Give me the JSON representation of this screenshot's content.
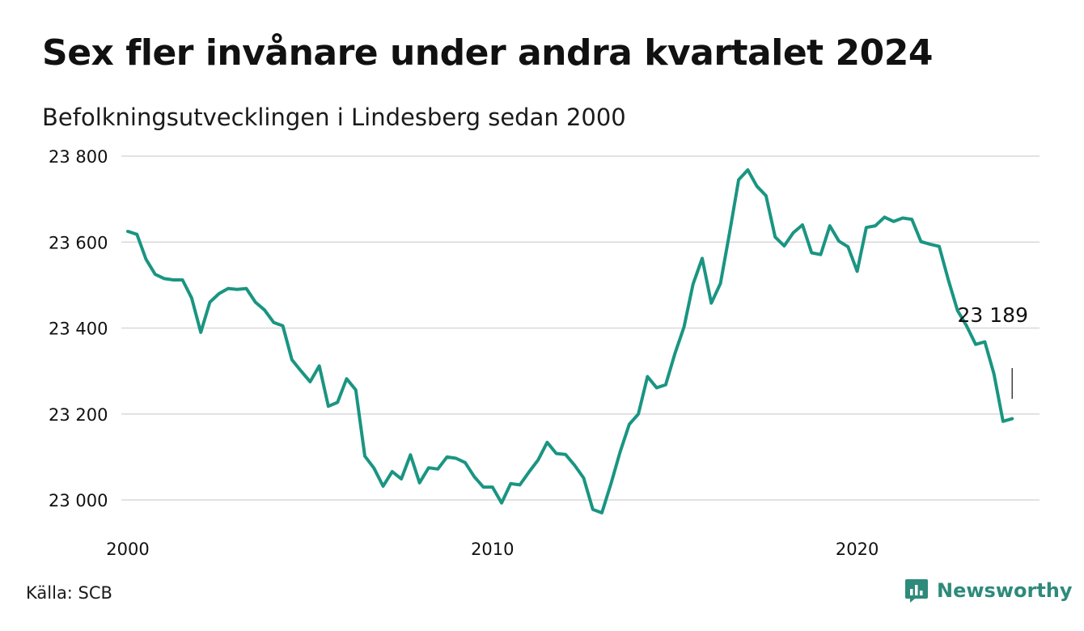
{
  "title": "Sex fler invånare under andra kvartalet 2024",
  "subtitle": "Befolkningsutvecklingen i Lindesberg sedan 2000",
  "source": "Källa: SCB",
  "brand": {
    "name": "Newsworthy",
    "icon": "bar-chart-logo-icon"
  },
  "colors": {
    "line": "#1a9582",
    "grid": "#d9d9d9",
    "brand": "#2e8a7a"
  },
  "chart_data": {
    "type": "line",
    "title": "Sex fler invånare under andra kvartalet 2024",
    "subtitle": "Befolkningsutvecklingen i Lindesberg sedan 2000",
    "xlabel": "",
    "ylabel": "",
    "xlim": [
      2000,
      2025
    ],
    "ylim": [
      22960,
      23800
    ],
    "y_ticks": [
      23000,
      23200,
      23400,
      23600,
      23800
    ],
    "y_tick_labels": [
      "23 000",
      "23 200",
      "23 400",
      "23 600",
      "23 800"
    ],
    "x_ticks": [
      2000,
      2010,
      2020
    ],
    "x_tick_labels": [
      "2000",
      "2010",
      "2020"
    ],
    "grid": true,
    "annotation": {
      "label": "23 189",
      "value": 23189
    },
    "series": [
      {
        "x": [
          2000.0,
          2000.25,
          2000.5,
          2000.75,
          2001.0,
          2001.25,
          2001.5,
          2001.75,
          2002.0,
          2002.25,
          2002.5,
          2002.75,
          2003.0,
          2003.25,
          2003.5,
          2003.75,
          2004.0,
          2004.25,
          2004.5,
          2004.75,
          2005.0,
          2005.25,
          2005.5,
          2005.75,
          2006.0,
          2006.25,
          2006.5,
          2006.75,
          2007.0,
          2007.25,
          2007.5,
          2007.75,
          2008.0,
          2008.25,
          2008.5,
          2008.75,
          2009.0,
          2009.25,
          2009.5,
          2009.75,
          2010.0,
          2010.25,
          2010.5,
          2010.75,
          2011.0,
          2011.25,
          2011.5,
          2011.75,
          2012.0,
          2012.25,
          2012.5,
          2012.75,
          2013.0,
          2013.25,
          2013.5,
          2013.75,
          2014.0,
          2014.25,
          2014.5,
          2014.75,
          2015.0,
          2015.25,
          2015.5,
          2015.75,
          2016.0,
          2016.25,
          2016.5,
          2016.75,
          2017.0,
          2017.25,
          2017.5,
          2017.75,
          2018.0,
          2018.25,
          2018.5,
          2018.75,
          2019.0,
          2019.25,
          2019.5,
          2019.75,
          2020.0,
          2020.25,
          2020.5,
          2020.75,
          2021.0,
          2021.25,
          2021.5,
          2021.75,
          2022.0,
          2022.25,
          2022.5,
          2022.75,
          2023.0,
          2023.25,
          2023.5,
          2023.75,
          2024.0,
          2024.25
        ],
        "values": [
          23625,
          23618,
          23560,
          23525,
          23515,
          23512,
          23512,
          23470,
          23390,
          23460,
          23480,
          23492,
          23490,
          23492,
          23460,
          23442,
          23413,
          23405,
          23326,
          23300,
          23275,
          23312,
          23218,
          23227,
          23282,
          23256,
          23102,
          23074,
          23032,
          23066,
          23049,
          23105,
          23040,
          23075,
          23072,
          23100,
          23097,
          23087,
          23054,
          23030,
          23030,
          22993,
          23038,
          23035,
          23065,
          23093,
          23134,
          23108,
          23106,
          23081,
          23051,
          22978,
          22970,
          23038,
          23112,
          23176,
          23200,
          23287,
          23261,
          23268,
          23340,
          23402,
          23502,
          23562,
          23458,
          23504,
          23621,
          23745,
          23768,
          23730,
          23708,
          23612,
          23591,
          23622,
          23640,
          23575,
          23571,
          23638,
          23602,
          23589,
          23532,
          23634,
          23638,
          23658,
          23648,
          23656,
          23653,
          23601,
          23595,
          23590,
          23512,
          23441,
          23405,
          23362,
          23368,
          23294,
          23183,
          23189
        ]
      }
    ]
  }
}
